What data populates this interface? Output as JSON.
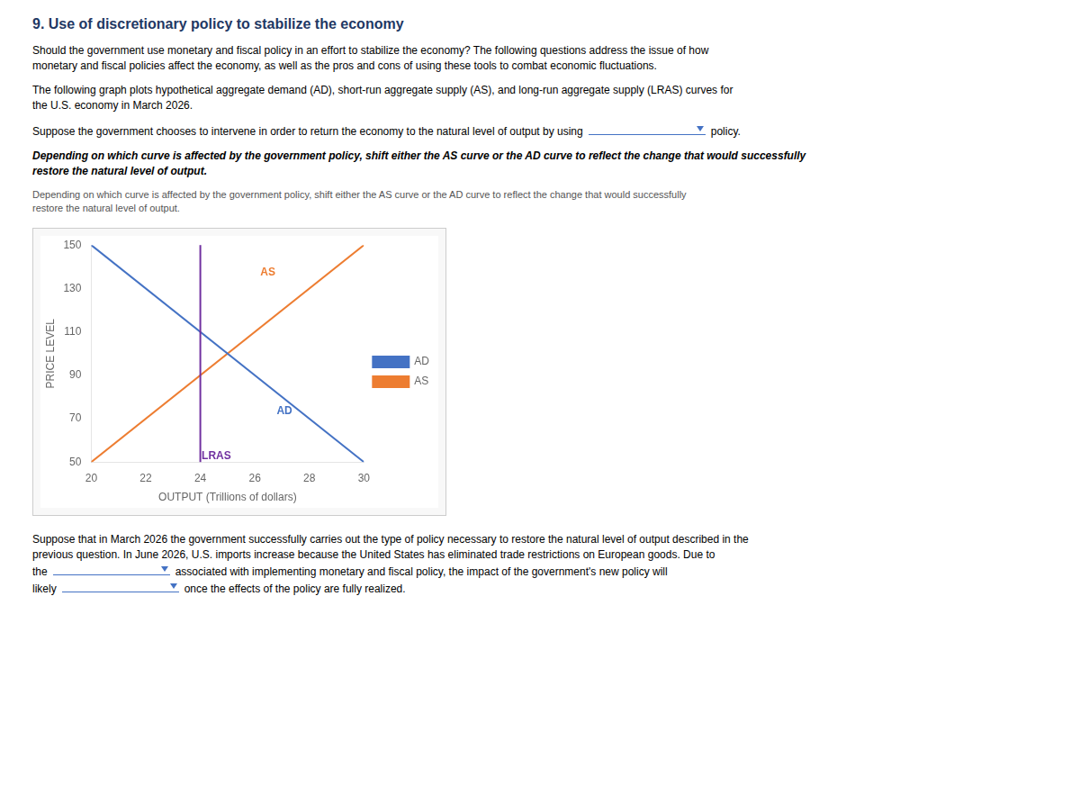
{
  "chart_data": {
    "type": "line",
    "title": "9. Use of discretionary policy to stabilize the economy",
    "title_color": "#1f3864",
    "blank_color": "#4472c4",
    "paragraphs": [
      [
        [
          "Should the government use monetary and fiscal policy in an effort to stabilize the economy? The following questions address the issue of how"
        ],
        [
          "monetary and fiscal policies affect the economy, as well as the pros and cons of using these tools to combat economic fluctuations."
        ]
      ],
      [
        [
          "The following graph plots hypothetical aggregate demand (AD), short-run aggregate supply (AS), and long-run aggregate supply (LRAS) curves for"
        ],
        [
          "the U.S. economy in March 2026."
        ]
      ],
      [
        [
          "Suppose the government chooses to intervene in order to return the economy to the natural level of output by using",
          "policy."
        ]
      ],
      [
        [
          "Depending on which curve is affected by the government policy, shift either the AS curve or the AD curve to reflect the change that would successfully"
        ],
        [
          "restore the natural level of output."
        ]
      ],
      [
        [
          "Depending on which curve is affected by the government policy, shift either the AS curve or the AD curve to reflect the change that would successfully"
        ],
        [
          "restore the natural level of output."
        ]
      ]
    ],
    "footer": [
      [
        "Suppose that in March 2026 the government successfully carries out the type of policy necessary to restore the natural level of output described in the"
      ],
      [
        "previous question. In June 2026, U.S. imports increase because the United States has eliminated trade restrictions on European goods. Due to"
      ],
      [
        "the",
        "associated with implementing monetary and fiscal policy, the impact of the government's new policy will"
      ],
      [
        "likely",
        "once the effects of the policy are fully realized."
      ]
    ],
    "x": [
      20,
      30
    ],
    "series": [
      {
        "name": "AD",
        "color": "#4472c4",
        "values": [
          150,
          50
        ]
      },
      {
        "name": "AS",
        "color": "#ed7d31",
        "values": [
          50,
          150
        ]
      }
    ],
    "xlabel": "OUTPUT (Trillions of dollars)",
    "ylabel": "PRICE LEVEL",
    "xlim": [
      20,
      30
    ],
    "ylim": [
      50,
      150
    ],
    "xticks": [
      20,
      22,
      24,
      26,
      28,
      30
    ],
    "yticks": [
      50,
      70,
      90,
      110,
      130,
      150
    ],
    "grid": false,
    "legend": "right",
    "annotations": [
      {
        "type": "vline",
        "x": 24,
        "color": "#7030a0"
      },
      {
        "text": "AS",
        "x": 26.2,
        "y": 136,
        "color": "#ed7d31"
      },
      {
        "text": "AD",
        "x": 26.8,
        "y": 72,
        "color": "#4472c4"
      },
      {
        "text": "LRAS",
        "x": 24.05,
        "y": 51.5,
        "color": "#7030a0"
      }
    ]
  }
}
